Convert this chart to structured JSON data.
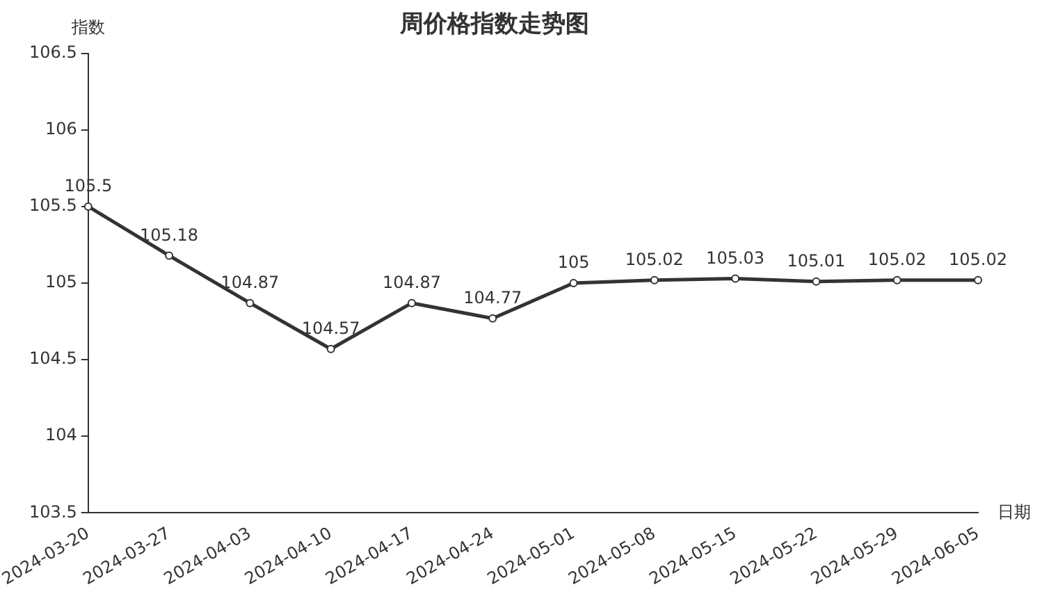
{
  "chart_data": {
    "type": "line",
    "title": "周价格指数走势图",
    "xlabel": "日期",
    "ylabel": "指数",
    "categories": [
      "2024-03-20",
      "2024-03-27",
      "2024-04-03",
      "2024-04-10",
      "2024-04-17",
      "2024-04-24",
      "2024-05-01",
      "2024-05-08",
      "2024-05-15",
      "2024-05-22",
      "2024-05-29",
      "2024-06-05"
    ],
    "series": [
      {
        "color": "#333333",
        "values": [
          105.5,
          105.18,
          104.87,
          104.57,
          104.87,
          104.77,
          105,
          105.02,
          105.03,
          105.01,
          105.02,
          105.02
        ]
      }
    ],
    "ylim": [
      103.5,
      106.5
    ],
    "yticks": [
      103.5,
      104,
      104.5,
      105,
      105.5,
      106,
      106.5
    ],
    "grid": false,
    "legend": false,
    "marker": "circle",
    "line_style": "solid",
    "data_labels": true
  }
}
